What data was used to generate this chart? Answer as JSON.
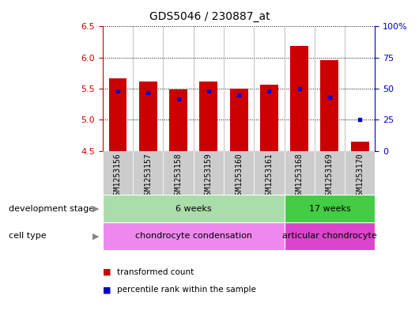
{
  "title": "GDS5046 / 230887_at",
  "samples": [
    "GSM1253156",
    "GSM1253157",
    "GSM1253158",
    "GSM1253159",
    "GSM1253160",
    "GSM1253161",
    "GSM1253168",
    "GSM1253169",
    "GSM1253170"
  ],
  "bar_values": [
    5.67,
    5.61,
    5.49,
    5.62,
    5.5,
    5.57,
    6.19,
    5.96,
    4.65
  ],
  "bar_bottom": 4.5,
  "percentile_rank_pct": [
    48,
    47,
    42,
    48,
    45,
    48,
    50,
    43,
    25
  ],
  "ylim": [
    4.5,
    6.5
  ],
  "y_right_ticks": [
    0,
    25,
    50,
    75,
    100
  ],
  "y_right_labels": [
    "0",
    "25",
    "50",
    "75",
    "100%"
  ],
  "y_left_ticks": [
    4.5,
    5.0,
    5.5,
    6.0,
    6.5
  ],
  "bar_color": "#cc0000",
  "percentile_color": "#0000cc",
  "bar_width": 0.6,
  "dev_stage_groups": [
    {
      "label": "6 weeks",
      "start": 0,
      "end": 5,
      "color": "#aaddaa"
    },
    {
      "label": "17 weeks",
      "start": 6,
      "end": 8,
      "color": "#44cc44"
    }
  ],
  "cell_type_groups": [
    {
      "label": "chondrocyte condensation",
      "start": 0,
      "end": 5,
      "color": "#ee88ee"
    },
    {
      "label": "articular chondrocyte",
      "start": 6,
      "end": 8,
      "color": "#dd44cc"
    }
  ],
  "legend_items": [
    {
      "color": "#cc0000",
      "label": "transformed count"
    },
    {
      "color": "#0000cc",
      "label": "percentile rank within the sample"
    }
  ],
  "dev_stage_label": "development stage",
  "cell_type_label": "cell type",
  "left_axis_color": "#cc0000",
  "right_axis_color": "#0000cc",
  "xtick_bg_color": "#cccccc",
  "col_sep_color": "#aaaaaa"
}
